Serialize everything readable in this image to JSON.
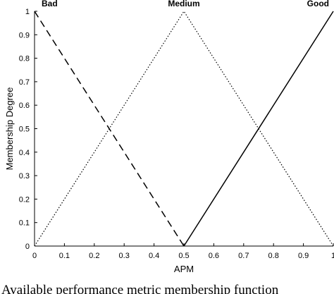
{
  "caption": "Available performance metric membership function",
  "chart_data": {
    "type": "line",
    "xlabel": "APM",
    "ylabel": "Membership Degree",
    "xlim": [
      0,
      1
    ],
    "ylim": [
      0,
      1
    ],
    "xticks": [
      "0",
      "0.1",
      "0.2",
      "0.3",
      "0.4",
      "0.5",
      "0.6",
      "0.7",
      "0.8",
      "0.9",
      "1"
    ],
    "yticks": [
      "0",
      "0.1",
      "0.2",
      "0.3",
      "0.4",
      "0.5",
      "0.6",
      "0.7",
      "0.8",
      "0.9",
      "1"
    ],
    "grid": false,
    "series": [
      {
        "name": "Bad",
        "style": "dashed",
        "color": "#000000",
        "x": [
          0,
          0.5
        ],
        "y": [
          1,
          0
        ]
      },
      {
        "name": "Medium",
        "style": "dotted",
        "color": "#000000",
        "x": [
          0,
          0.5,
          1
        ],
        "y": [
          0,
          1,
          0
        ]
      },
      {
        "name": "Good",
        "style": "solid",
        "color": "#000000",
        "x": [
          0.5,
          1
        ],
        "y": [
          0,
          1
        ]
      }
    ]
  }
}
